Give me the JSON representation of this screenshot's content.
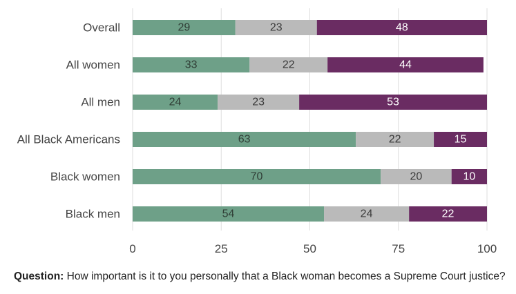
{
  "chart_data": {
    "type": "bar",
    "orientation": "horizontal",
    "stacked": true,
    "categories": [
      "Overall",
      "All women",
      "All men",
      "All Black Americans",
      "Black women",
      "Black men"
    ],
    "series": [
      {
        "color": "#6ea088",
        "label_color": "#2f3d35",
        "values": [
          29,
          33,
          24,
          63,
          70,
          54
        ]
      },
      {
        "color": "#bababa",
        "label_color": "#3a3a3a",
        "values": [
          23,
          22,
          23,
          22,
          20,
          24
        ]
      },
      {
        "color": "#6a2c62",
        "label_color": "#ffffff",
        "values": [
          48,
          44,
          53,
          15,
          10,
          22
        ]
      }
    ],
    "xlim": [
      0,
      100
    ],
    "xticks": [
      0,
      25,
      50,
      75,
      100
    ],
    "grid": true,
    "legend": "none"
  },
  "footnote": {
    "label": "Question:",
    "text": " How important is it to you personally that a Black woman becomes a Supreme Court justice?"
  }
}
